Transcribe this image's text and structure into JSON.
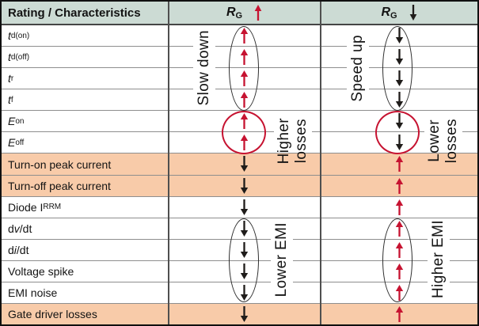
{
  "colors": {
    "red": "#c61331",
    "black": "#1f1c1a",
    "header_bg": "#ccdbd4",
    "highlight_bg": "#f8cba9",
    "grid": "#8e8e8e",
    "divider": "#4f4f4f",
    "border": "#101010",
    "text": "#131313"
  },
  "header": {
    "characteristics": "Rating / Characteristics",
    "rg_up": {
      "base": "R",
      "sub": "G",
      "direction": "up",
      "arrow_color": "red"
    },
    "rg_down": {
      "base": "R",
      "sub": "G",
      "direction": "down",
      "arrow_color": "black"
    }
  },
  "rows": [
    {
      "label_parts": [
        {
          "t": "t",
          "italic": true
        },
        {
          "t": "d(on)",
          "sub": true
        }
      ],
      "highlight": false,
      "rg_up": {
        "dir": "up",
        "color": "red"
      },
      "rg_down": {
        "dir": "down",
        "color": "black"
      }
    },
    {
      "label_parts": [
        {
          "t": "t",
          "italic": true
        },
        {
          "t": "d(off)",
          "sub": true
        }
      ],
      "highlight": false,
      "rg_up": {
        "dir": "up",
        "color": "red"
      },
      "rg_down": {
        "dir": "down",
        "color": "black"
      }
    },
    {
      "label_parts": [
        {
          "t": "t",
          "italic": true
        },
        {
          "t": "r",
          "sub": true
        }
      ],
      "highlight": false,
      "rg_up": {
        "dir": "up",
        "color": "red"
      },
      "rg_down": {
        "dir": "down",
        "color": "black"
      }
    },
    {
      "label_parts": [
        {
          "t": "t",
          "italic": true
        },
        {
          "t": "f",
          "sub": true
        }
      ],
      "highlight": false,
      "rg_up": {
        "dir": "up",
        "color": "red"
      },
      "rg_down": {
        "dir": "down",
        "color": "black"
      }
    },
    {
      "label_parts": [
        {
          "t": "E",
          "italic": true
        },
        {
          "t": "on",
          "sub": true
        }
      ],
      "highlight": false,
      "rg_up": {
        "dir": "up",
        "color": "red"
      },
      "rg_down": {
        "dir": "down",
        "color": "black"
      }
    },
    {
      "label_parts": [
        {
          "t": "E",
          "italic": true
        },
        {
          "t": "off",
          "sub": true
        }
      ],
      "highlight": false,
      "rg_up": {
        "dir": "up",
        "color": "red"
      },
      "rg_down": {
        "dir": "down",
        "color": "black"
      }
    },
    {
      "label_parts": [
        {
          "t": "Turn-on peak current"
        }
      ],
      "highlight": true,
      "rg_up": {
        "dir": "down",
        "color": "black"
      },
      "rg_down": {
        "dir": "up",
        "color": "red"
      }
    },
    {
      "label_parts": [
        {
          "t": "Turn-off peak current"
        }
      ],
      "highlight": true,
      "rg_up": {
        "dir": "down",
        "color": "black"
      },
      "rg_down": {
        "dir": "up",
        "color": "red"
      }
    },
    {
      "label_parts": [
        {
          "t": "Diode I"
        },
        {
          "t": "RRM",
          "sub": true
        }
      ],
      "highlight": false,
      "rg_up": {
        "dir": "down",
        "color": "black"
      },
      "rg_down": {
        "dir": "up",
        "color": "red"
      }
    },
    {
      "label_parts": [
        {
          "t": "d"
        },
        {
          "t": "v",
          "italic": true
        },
        {
          "t": "/dt"
        }
      ],
      "highlight": false,
      "rg_up": {
        "dir": "down",
        "color": "black"
      },
      "rg_down": {
        "dir": "up",
        "color": "red"
      }
    },
    {
      "label_parts": [
        {
          "t": "d"
        },
        {
          "t": "i",
          "italic": true
        },
        {
          "t": "/dt"
        }
      ],
      "highlight": false,
      "rg_up": {
        "dir": "down",
        "color": "black"
      },
      "rg_down": {
        "dir": "up",
        "color": "red"
      }
    },
    {
      "label_parts": [
        {
          "t": "Voltage spike"
        }
      ],
      "highlight": false,
      "rg_up": {
        "dir": "down",
        "color": "black"
      },
      "rg_down": {
        "dir": "up",
        "color": "red"
      }
    },
    {
      "label_parts": [
        {
          "t": "EMI noise"
        }
      ],
      "highlight": false,
      "rg_up": {
        "dir": "down",
        "color": "black"
      },
      "rg_down": {
        "dir": "up",
        "color": "red"
      }
    },
    {
      "label_parts": [
        {
          "t": "Gate driver losses"
        }
      ],
      "highlight": true,
      "rg_up": {
        "dir": "down",
        "color": "black"
      },
      "rg_down": {
        "dir": "up",
        "color": "red"
      }
    }
  ],
  "annotations": {
    "rg_up": {
      "speed_label": "Slow down",
      "losses_line1": "Higher",
      "losses_line2": "losses",
      "emi_label": "Lower EMI"
    },
    "rg_down": {
      "speed_label": "Speed up",
      "losses_line1": "Lower",
      "losses_line2": "losses",
      "emi_label": "Higher EMI"
    }
  }
}
